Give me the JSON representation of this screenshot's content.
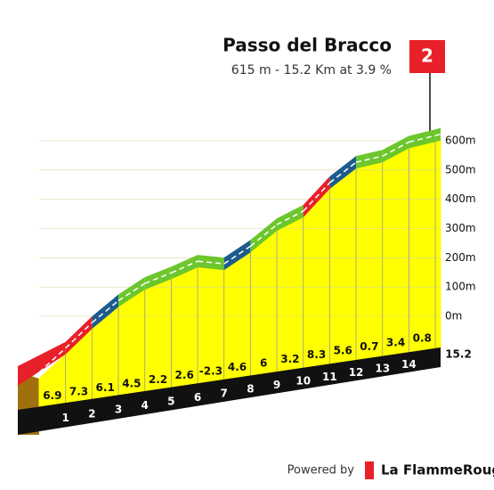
{
  "chart_data": {
    "type": "climb-profile",
    "title": "Passo del Bracco",
    "subtitle": "615 m - 15.2 Km at 3.9 %",
    "climb_number": "2",
    "x": [
      0,
      1,
      2,
      3,
      4,
      5,
      6,
      7,
      8,
      9,
      10,
      11,
      12,
      13,
      14,
      15,
      15.2
    ],
    "elevation": [
      0,
      69,
      142,
      203,
      248,
      270,
      296,
      273,
      319,
      379,
      411,
      494,
      550,
      557,
      591,
      599,
      601
    ],
    "gradients": [
      6.9,
      7.3,
      6.1,
      4.5,
      2.2,
      2.6,
      -2.3,
      4.6,
      6.0,
      3.2,
      8.3,
      5.6,
      0.7,
      3.4,
      0.8,
      null
    ],
    "gradient_colors": [
      "#e8202a",
      "#e8202a",
      "#1d5b8c",
      "#6cc62c",
      "#6cc62c",
      "#6cc62c",
      "#6cc62c",
      "#1d5b8c",
      "#6cc62c",
      "#6cc62c",
      "#e8202a",
      "#1d5b8c",
      "#6cc62c",
      "#6cc62c",
      "#6cc62c",
      "#6cc62c"
    ],
    "fill_color": "#ffff00",
    "ylim": [
      0,
      600
    ],
    "yticks": [
      {
        "value": 0,
        "label": "0m"
      },
      {
        "value": 100,
        "label": "100m"
      },
      {
        "value": 200,
        "label": "200m"
      },
      {
        "value": 300,
        "label": "300m"
      },
      {
        "value": 400,
        "label": "400m"
      },
      {
        "value": 500,
        "label": "500m"
      },
      {
        "value": 600,
        "label": "600m"
      }
    ],
    "footer": {
      "powered": "Powered by",
      "brand": "La FlammeRouge"
    }
  }
}
